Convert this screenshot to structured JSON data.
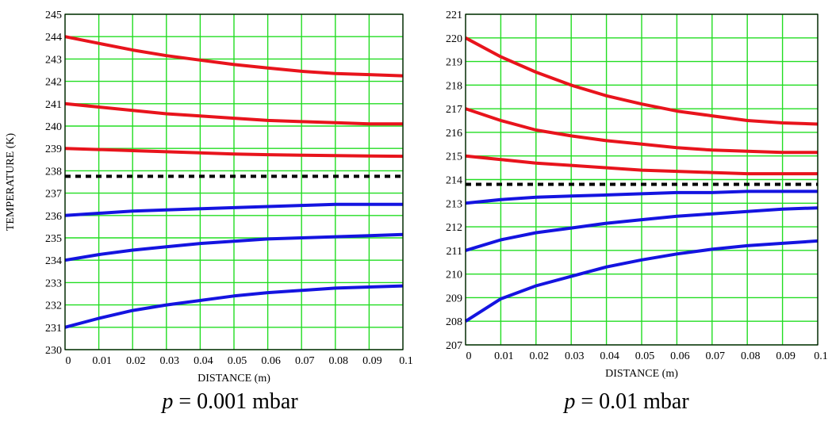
{
  "chart_data": [
    {
      "type": "line",
      "caption": {
        "var": "p",
        "rest": " = 0.001 mbar"
      },
      "xlabel": "DISTANCE (m)",
      "ylabel": "TEMPERATURE (K)",
      "xlim": [
        0,
        0.1
      ],
      "ylim": [
        230,
        245
      ],
      "x_ticks": [
        "0",
        "0.01",
        "0.02",
        "0.03",
        "0.04",
        "0.05",
        "0.06",
        "0.07",
        "0.08",
        "0.09",
        "0.1"
      ],
      "y_ticks": [
        "230",
        "231",
        "232",
        "233",
        "234",
        "235",
        "236",
        "237",
        "238",
        "239",
        "240",
        "241",
        "242",
        "243",
        "244",
        "245"
      ],
      "grid": true,
      "x": [
        0,
        0.01,
        0.02,
        0.03,
        0.04,
        0.05,
        0.06,
        0.07,
        0.08,
        0.09,
        0.1
      ],
      "series": [
        {
          "color": "#e8141c",
          "style": "solid",
          "values": [
            244.0,
            243.7,
            243.4,
            243.15,
            242.95,
            242.75,
            242.6,
            242.45,
            242.35,
            242.3,
            242.25
          ]
        },
        {
          "color": "#e8141c",
          "style": "solid",
          "values": [
            241.0,
            240.85,
            240.7,
            240.55,
            240.45,
            240.35,
            240.25,
            240.2,
            240.15,
            240.1,
            240.1
          ]
        },
        {
          "color": "#e8141c",
          "style": "solid",
          "values": [
            239.0,
            238.95,
            238.9,
            238.85,
            238.8,
            238.75,
            238.72,
            238.7,
            238.68,
            238.66,
            238.65
          ]
        },
        {
          "color": "#000000",
          "style": "dashed",
          "values": [
            237.75,
            237.75,
            237.75,
            237.75,
            237.75,
            237.75,
            237.75,
            237.75,
            237.75,
            237.75,
            237.75
          ]
        },
        {
          "color": "#1414e0",
          "style": "solid",
          "values": [
            236.0,
            236.1,
            236.2,
            236.25,
            236.3,
            236.35,
            236.4,
            236.45,
            236.5,
            236.5,
            236.5
          ]
        },
        {
          "color": "#1414e0",
          "style": "solid",
          "values": [
            234.0,
            234.25,
            234.45,
            234.6,
            234.75,
            234.85,
            234.95,
            235.0,
            235.05,
            235.1,
            235.15
          ]
        },
        {
          "color": "#1414e0",
          "style": "solid",
          "values": [
            231.0,
            231.4,
            231.75,
            232.0,
            232.2,
            232.4,
            232.55,
            232.65,
            232.75,
            232.8,
            232.85
          ]
        }
      ]
    },
    {
      "type": "line",
      "caption": {
        "var": "p",
        "rest": " = 0.01 mbar"
      },
      "xlabel": "DISTANCE (m)",
      "ylabel": "",
      "xlim": [
        0,
        0.1
      ],
      "ylim": [
        207,
        221
      ],
      "x_ticks": [
        "0",
        "0.01",
        "0.02",
        "0.03",
        "0.04",
        "0.05",
        "0.06",
        "0.07",
        "0.08",
        "0.09",
        "0.1"
      ],
      "y_ticks": [
        "207",
        "208",
        "209",
        "210",
        "211",
        "212",
        "213",
        "214",
        "215",
        "216",
        "217",
        "218",
        "219",
        "220",
        "221"
      ],
      "grid": true,
      "x": [
        0,
        0.01,
        0.02,
        0.03,
        0.04,
        0.05,
        0.06,
        0.07,
        0.08,
        0.09,
        0.1
      ],
      "series": [
        {
          "color": "#e8141c",
          "style": "solid",
          "values": [
            220.0,
            219.2,
            218.55,
            218.0,
            217.55,
            217.2,
            216.9,
            216.7,
            216.5,
            216.4,
            216.35
          ]
        },
        {
          "color": "#e8141c",
          "style": "solid",
          "values": [
            217.0,
            216.5,
            216.1,
            215.85,
            215.65,
            215.5,
            215.35,
            215.25,
            215.2,
            215.15,
            215.15
          ]
        },
        {
          "color": "#e8141c",
          "style": "solid",
          "values": [
            215.0,
            214.85,
            214.7,
            214.6,
            214.5,
            214.4,
            214.35,
            214.3,
            214.25,
            214.25,
            214.25
          ]
        },
        {
          "color": "#000000",
          "style": "dashed",
          "values": [
            213.8,
            213.8,
            213.8,
            213.8,
            213.8,
            213.8,
            213.8,
            213.8,
            213.8,
            213.8,
            213.8
          ]
        },
        {
          "color": "#1414e0",
          "style": "solid",
          "values": [
            213.0,
            213.15,
            213.25,
            213.3,
            213.35,
            213.4,
            213.45,
            213.45,
            213.5,
            213.5,
            213.5
          ]
        },
        {
          "color": "#1414e0",
          "style": "solid",
          "values": [
            211.0,
            211.45,
            211.75,
            211.95,
            212.15,
            212.3,
            212.45,
            212.55,
            212.65,
            212.75,
            212.8
          ]
        },
        {
          "color": "#1414e0",
          "style": "solid",
          "values": [
            208.0,
            208.95,
            209.5,
            209.9,
            210.3,
            210.6,
            210.85,
            211.05,
            211.2,
            211.3,
            211.4
          ]
        }
      ]
    }
  ]
}
